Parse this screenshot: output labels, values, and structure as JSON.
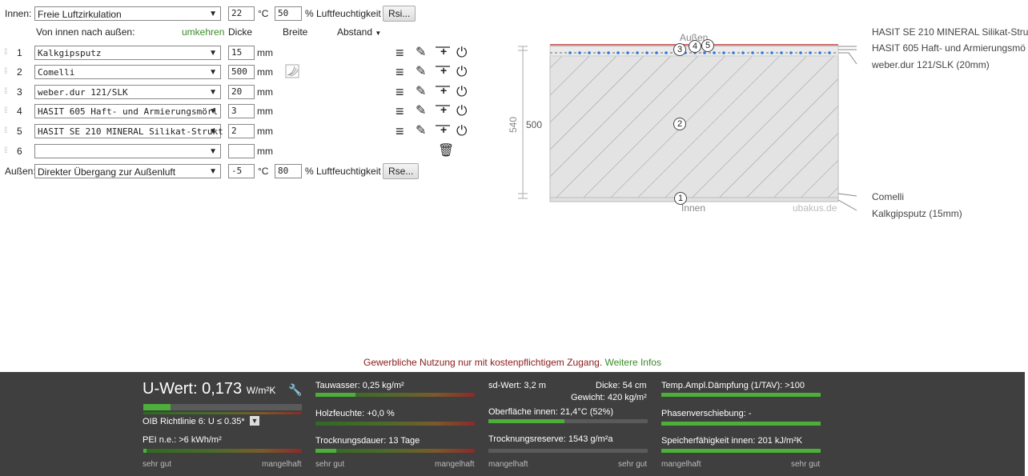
{
  "inside": {
    "label": "Innen:",
    "climate": "Freie Luftzirkulation",
    "temp": "22",
    "temp_unit": "°C",
    "humidity": "50",
    "humidity_unit": "% Luftfeuchtigkeit",
    "button": "Rsi..."
  },
  "outside": {
    "label": "Außen:",
    "climate": "Direkter Übergang zur Außenluft",
    "temp": "-5",
    "temp_unit": "°C",
    "humidity": "80",
    "humidity_unit": "% Luftfeuchtigkeit",
    "button": "Rse..."
  },
  "header": {
    "direction": "Von innen nach außen:",
    "reverse": "umkehren",
    "thickness": "Dicke",
    "width": "Breite",
    "spacing": "Abstand"
  },
  "layers": [
    {
      "num": "1",
      "material": "Kalkgipsputz",
      "thickness": "15",
      "unit": "mm"
    },
    {
      "num": "2",
      "material": "Comelli",
      "thickness": "500",
      "unit": "mm"
    },
    {
      "num": "3",
      "material": "weber.dur 121/SLK",
      "thickness": "20",
      "unit": "mm"
    },
    {
      "num": "4",
      "material": "HASIT 605 Haft- und Armierungsmörl",
      "thickness": "3",
      "unit": "mm"
    },
    {
      "num": "5",
      "material": "HASIT SE 210 MINERAL Silikat-Strukt",
      "thickness": "2",
      "unit": "mm"
    },
    {
      "num": "6",
      "material": "",
      "thickness": "",
      "unit": "mm"
    }
  ],
  "diagram": {
    "outer_label": "Außen",
    "inner_label": "Innen",
    "watermark": "ubakus.de",
    "total_dim": "540",
    "layer_dim": "500",
    "markers": [
      "1",
      "2",
      "3",
      "4",
      "5"
    ],
    "right_labels_top": [
      "HASIT SE 210 MINERAL Silikat-Stru",
      "HASIT 605 Haft- und Armierungsmö",
      "weber.dur 121/SLK (20mm)"
    ],
    "right_labels_bottom": [
      "Comelli",
      "Kalkgipsputz (15mm)"
    ]
  },
  "notice": {
    "text": "Gewerbliche Nutzung nur mit kostenpflichtigem Zugang.",
    "link": "Weitere Infos"
  },
  "results": {
    "uvalue_label": "U-Wert:",
    "uvalue": "0,173",
    "uvalue_unit": "W/m²K",
    "oib": "OIB Richtlinie 6: U ≤ 0.35*",
    "pei": "PEI n.e.: >6 kWh/m²",
    "condensate": "Tauwasser: 0,25 kg/m²",
    "wood_moisture": "Holzfeuchte: +0,0 %",
    "drying_time": "Trocknungsdauer: 13 Tage",
    "sd_value": "sd-Wert: 3,2 m",
    "thickness": "Dicke: 54 cm",
    "weight": "Gewicht: 420 kg/m²",
    "surface_inside": "Oberfläche innen: 21,4°C (52%)",
    "drying_reserve": "Trocknungsreserve: 1543 g/m²a",
    "temp_damping": "Temp.Ampl.Dämpfung (1/TAV): >100",
    "phase_shift": "Phasenverschiebung: -",
    "heat_storage": "Speicherfähigkeit innen: 201 kJ/m²K",
    "scale_good": "sehr gut",
    "scale_bad": "mangelhaft"
  },
  "colors": {
    "green_link": "#3a8a2a",
    "notice_red": "#8b1a1a",
    "footer_bg": "#3f3f3f",
    "bar_green": "#4caf3a"
  }
}
